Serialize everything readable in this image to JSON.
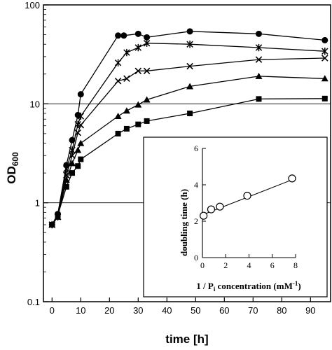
{
  "chart_data": [
    {
      "type": "line",
      "yscale": "log",
      "xlabel": "time [h]",
      "ylabel_main": "OD",
      "ylabel_sub": "600",
      "xlim": [
        -3,
        97
      ],
      "ylim": [
        0.1,
        100
      ],
      "xticks": [
        0,
        10,
        20,
        30,
        40,
        50,
        60,
        70,
        80,
        90
      ],
      "yticks": [
        0.1,
        1,
        10,
        100
      ],
      "ytick_labels": [
        "0.1",
        "1",
        "10",
        "100"
      ],
      "grid": "y-major",
      "series": [
        {
          "marker": "circle",
          "x": [
            0,
            2,
            5,
            7,
            9,
            10,
            23,
            25,
            30,
            33,
            48,
            72,
            95
          ],
          "y": [
            0.6,
            0.77,
            2.4,
            4.3,
            7.7,
            12.5,
            49,
            49,
            51,
            47,
            54,
            51,
            44
          ]
        },
        {
          "marker": "star",
          "x": [
            0,
            2,
            5,
            7,
            9,
            10,
            23,
            26,
            30,
            33,
            48,
            72,
            95
          ],
          "y": [
            0.6,
            0.72,
            2.2,
            3.4,
            6.2,
            7.5,
            26,
            33,
            37,
            41,
            40,
            37,
            34
          ]
        },
        {
          "marker": "x",
          "x": [
            0,
            2,
            5,
            7,
            9,
            10,
            23,
            26,
            30,
            33,
            48,
            72,
            95
          ],
          "y": [
            0.6,
            0.72,
            1.9,
            3.0,
            5.1,
            6.1,
            17,
            18,
            21.5,
            21.5,
            24,
            28,
            29
          ]
        },
        {
          "marker": "triangle",
          "x": [
            0,
            2,
            5,
            7,
            9,
            10,
            23,
            26,
            30,
            33,
            48,
            72,
            95
          ],
          "y": [
            0.6,
            0.72,
            1.7,
            2.5,
            3.4,
            4.0,
            7.5,
            8.5,
            9.8,
            11,
            15,
            19,
            18
          ]
        },
        {
          "marker": "square",
          "x": [
            0,
            2,
            5,
            7,
            9,
            10,
            23,
            26,
            30,
            33,
            48,
            72,
            95
          ],
          "y": [
            0.6,
            0.75,
            1.45,
            2.0,
            2.35,
            2.75,
            5.0,
            5.6,
            6.2,
            6.7,
            8.0,
            11.2,
            11.3
          ]
        }
      ]
    },
    {
      "type": "scatter",
      "xlabel_pre": "1 / P",
      "xlabel_sub": "i",
      "xlabel_post": " concentration (mM",
      "xlabel_sup": "-1",
      "xlabel_end": ")",
      "ylabel": "doubling time (h)",
      "xlim": [
        0,
        8
      ],
      "ylim": [
        0,
        6
      ],
      "xticks": [
        0,
        2,
        4,
        6,
        8
      ],
      "yticks": [
        0,
        2,
        4,
        6
      ],
      "points": {
        "x": [
          0.1,
          0.75,
          1.5,
          3.85,
          7.7
        ],
        "y": [
          2.3,
          2.65,
          2.8,
          3.4,
          4.35
        ]
      },
      "fit_line": {
        "x": [
          0,
          7.8
        ],
        "y": [
          2.35,
          4.3
        ]
      }
    }
  ]
}
